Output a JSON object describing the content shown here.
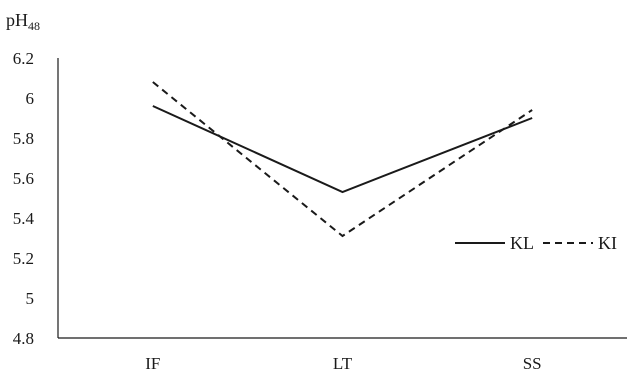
{
  "chart_data": {
    "type": "line",
    "ylabel": {
      "main": "pH",
      "sub": "48"
    },
    "xlabel": "",
    "categories": [
      "IF",
      "LT",
      "SS"
    ],
    "ylim": [
      4.8,
      6.2
    ],
    "yticks": [
      "4.8",
      "5",
      "5.2",
      "5.4",
      "5.6",
      "5.8",
      "6",
      "6.2"
    ],
    "grid": false,
    "legend_position": "right",
    "series": [
      {
        "name": "KL",
        "style": "solid",
        "color": "#1a1a1a",
        "values": [
          5.96,
          5.53,
          5.9
        ]
      },
      {
        "name": "KI",
        "style": "dashed",
        "color": "#1a1a1a",
        "values": [
          6.08,
          5.31,
          5.94
        ]
      }
    ]
  }
}
